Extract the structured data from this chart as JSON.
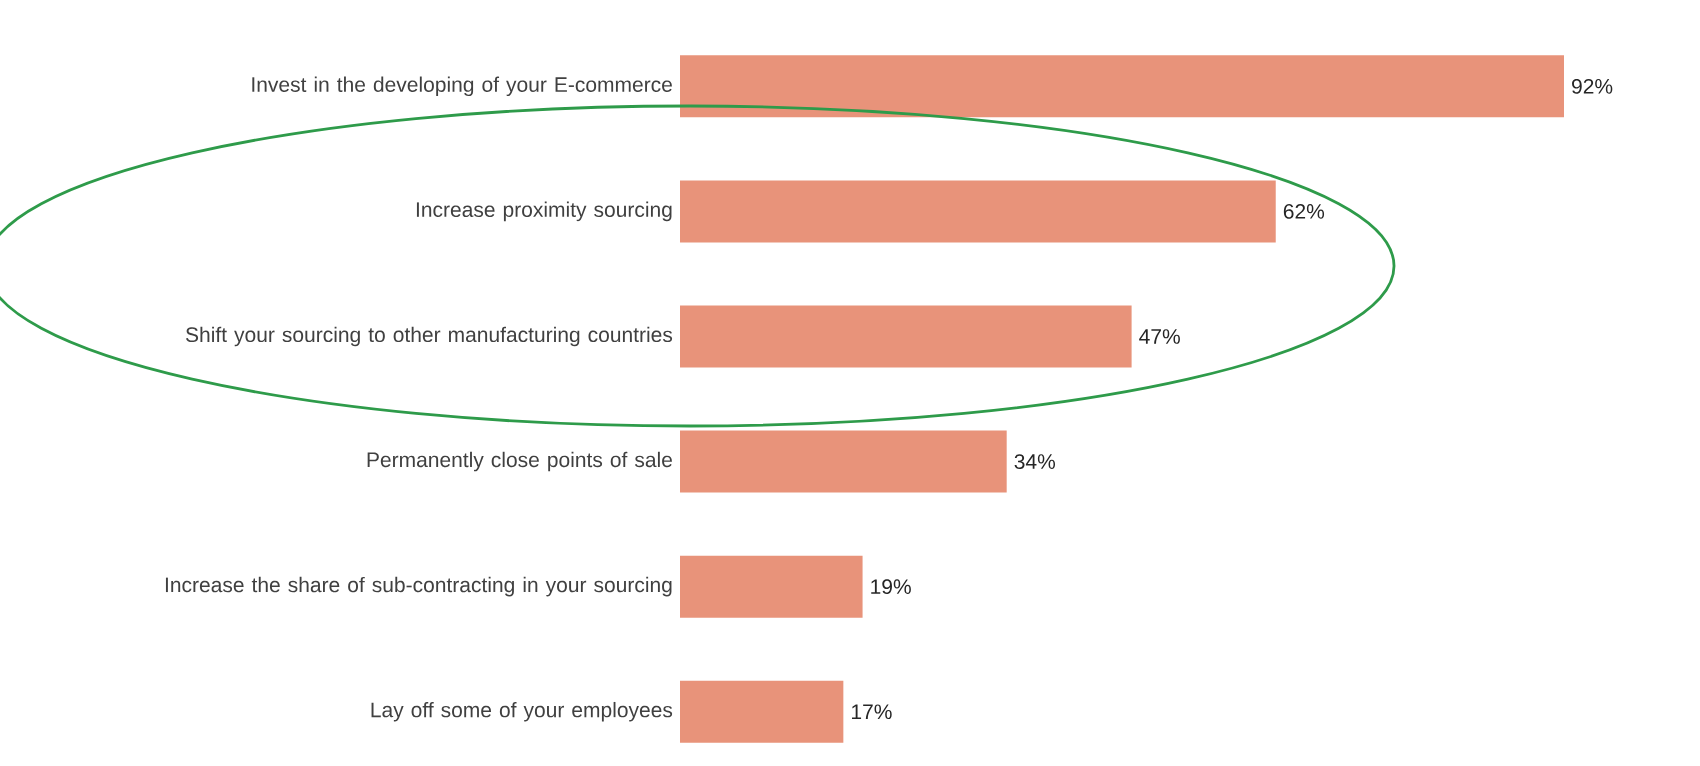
{
  "chart_data": {
    "type": "bar",
    "orientation": "horizontal",
    "categories": [
      "Invest in the developing of your E-commerce",
      "Increase proximity sourcing",
      "Shift your sourcing to other manufacturing countries",
      "Permanently close points of sale",
      "Increase the share of sub-contracting in your sourcing",
      "Lay off some of your employees"
    ],
    "values": [
      92,
      62,
      47,
      34,
      19,
      17
    ],
    "value_labels": [
      "92%",
      "62%",
      "47%",
      "34%",
      "19%",
      "17%"
    ],
    "color": "#e8937a"
  }
}
